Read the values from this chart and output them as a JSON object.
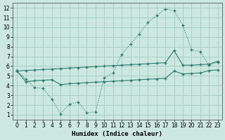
{
  "xlabel": "Humidex (Indice chaleur)",
  "bg_color": "#cce8e0",
  "grid_color": "#aad0c8",
  "line_color": "#2e7d70",
  "xlim": [
    -0.5,
    23.5
  ],
  "ylim": [
    0.5,
    12.5
  ],
  "xticks": [
    0,
    1,
    2,
    3,
    4,
    5,
    6,
    7,
    8,
    9,
    10,
    11,
    12,
    13,
    14,
    15,
    16,
    17,
    18,
    19,
    20,
    21,
    22,
    23
  ],
  "yticks": [
    1,
    2,
    3,
    4,
    5,
    6,
    7,
    8,
    9,
    10,
    11,
    12
  ],
  "curve_x": [
    0,
    1,
    2,
    3,
    4,
    5,
    6,
    7,
    8,
    9,
    10,
    11,
    12,
    13,
    14,
    15,
    16,
    17,
    18,
    19,
    20,
    21,
    22,
    23
  ],
  "curve_y": [
    5.5,
    4.7,
    3.8,
    3.7,
    2.6,
    1.1,
    2.1,
    2.3,
    1.2,
    1.3,
    4.8,
    5.3,
    7.2,
    8.3,
    9.3,
    10.5,
    11.2,
    11.9,
    11.7,
    10.2,
    7.7,
    7.5,
    6.1,
    6.4
  ],
  "upper_x": [
    0,
    1,
    2,
    3,
    4,
    5,
    6,
    7,
    8,
    9,
    10,
    11,
    12,
    13,
    14,
    15,
    16,
    17,
    18,
    19,
    20,
    21,
    22,
    23
  ],
  "upper_y": [
    5.5,
    5.55,
    5.6,
    5.65,
    5.7,
    5.75,
    5.8,
    5.85,
    5.9,
    5.95,
    6.0,
    6.05,
    6.1,
    6.15,
    6.2,
    6.25,
    6.3,
    6.35,
    7.6,
    6.1,
    6.1,
    6.15,
    6.2,
    6.5
  ],
  "lower_x": [
    0,
    1,
    2,
    3,
    4,
    5,
    6,
    7,
    8,
    9,
    10,
    11,
    12,
    13,
    14,
    15,
    16,
    17,
    18,
    19,
    20,
    21,
    22,
    23
  ],
  "lower_y": [
    5.5,
    4.4,
    4.5,
    4.55,
    4.6,
    4.1,
    4.2,
    4.25,
    4.3,
    4.35,
    4.4,
    4.45,
    4.5,
    4.55,
    4.6,
    4.65,
    4.7,
    4.75,
    5.5,
    5.2,
    5.25,
    5.3,
    5.55,
    5.6
  ],
  "xlabel_fontsize": 6.5,
  "tick_fontsize": 5.5
}
